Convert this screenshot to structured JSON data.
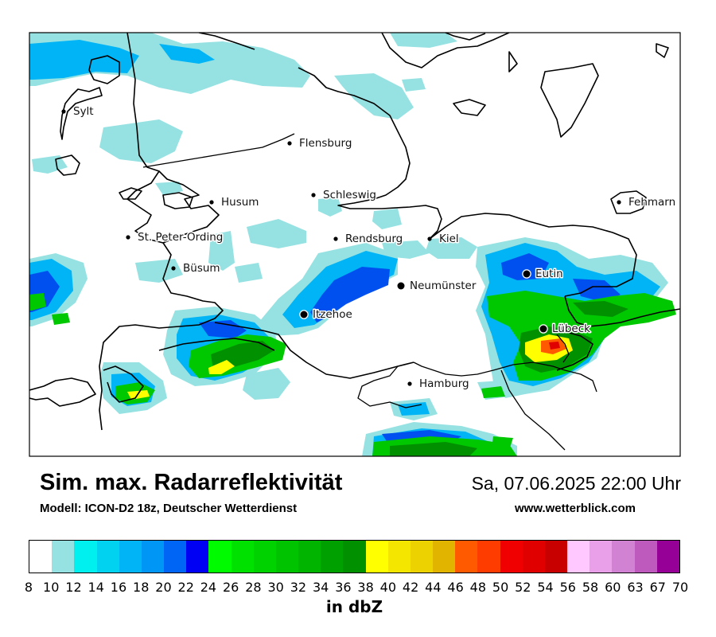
{
  "header": {
    "title": "Sim. max. Radarreflektivität",
    "model": "Modell: ICON-D2 18z, Deutscher Wetterdienst",
    "datetime": "Sa, 07.06.2025 22:00 Uhr",
    "website": "www.wetterblick.com"
  },
  "cities": [
    {
      "name": "Sylt",
      "marker": "dot"
    },
    {
      "name": "Flensburg",
      "marker": "dot"
    },
    {
      "name": "Husum",
      "marker": "dot"
    },
    {
      "name": "Schleswig",
      "marker": "dot"
    },
    {
      "name": "Fehmarn",
      "marker": "dot"
    },
    {
      "name": "St. Peter-Ording",
      "marker": "dot"
    },
    {
      "name": "Rendsburg",
      "marker": "dot"
    },
    {
      "name": "Kiel",
      "marker": "dot"
    },
    {
      "name": "Büsum",
      "marker": "dot"
    },
    {
      "name": "Eutin",
      "marker": "ring"
    },
    {
      "name": "Neumünster",
      "marker": "ring"
    },
    {
      "name": "Itzehoe",
      "marker": "ring"
    },
    {
      "name": "Lübeck",
      "marker": "ring"
    },
    {
      "name": "Hamburg",
      "marker": "dot"
    }
  ],
  "legend": {
    "unit_label": "in dbZ",
    "tick_labels": [
      "8",
      "10",
      "12",
      "14",
      "16",
      "18",
      "20",
      "22",
      "24",
      "26",
      "28",
      "30",
      "32",
      "34",
      "36",
      "38",
      "40",
      "42",
      "44",
      "46",
      "48",
      "50",
      "52",
      "54",
      "56",
      "58",
      "60",
      "63",
      "67",
      "70"
    ],
    "colors": [
      "#ffffff",
      "#ffffff",
      "#96e2e2",
      "#00f0f0",
      "#00d2f0",
      "#00b4f5",
      "#0096f5",
      "#0064f5",
      "#0000f5",
      "#00fa00",
      "#00e100",
      "#00d200",
      "#00c300",
      "#00b400",
      "#00a000",
      "#009000",
      "#ffff00",
      "#f5e600",
      "#ebd200",
      "#e1b400",
      "#ff5a00",
      "#ff3c00",
      "#f00000",
      "#e10000",
      "#c80000",
      "#ffc8ff",
      "#e9a0e9",
      "#d282d2",
      "#be5abe",
      "#960096"
    ]
  }
}
